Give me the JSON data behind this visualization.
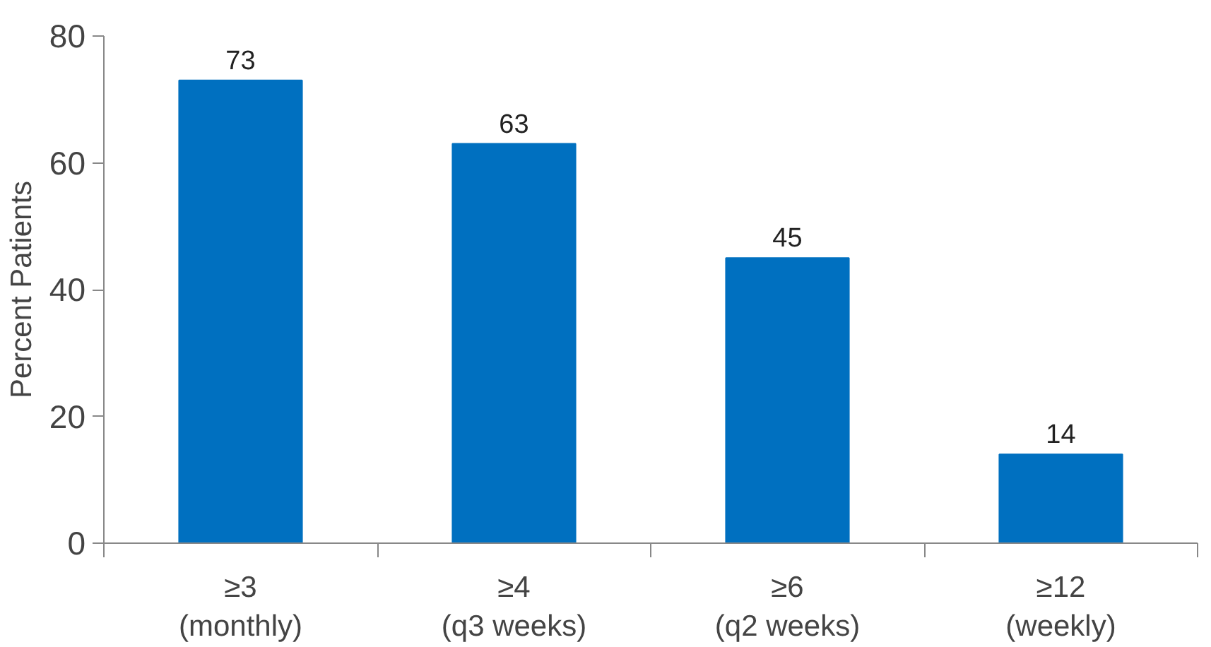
{
  "chart_data": {
    "type": "bar",
    "ylabel": "Percent Patients",
    "categories": [
      "≥3\n(monthly)",
      "≥4\n(q3 weeks)",
      "≥6\n(q2 weeks)",
      "≥12\n(weekly)"
    ],
    "values": [
      73,
      63,
      45,
      14
    ],
    "color": "#0070c0",
    "ylim": [
      0,
      80
    ],
    "yticks": [
      0,
      20,
      40,
      60,
      80
    ],
    "grid": false,
    "data_labels": true
  }
}
